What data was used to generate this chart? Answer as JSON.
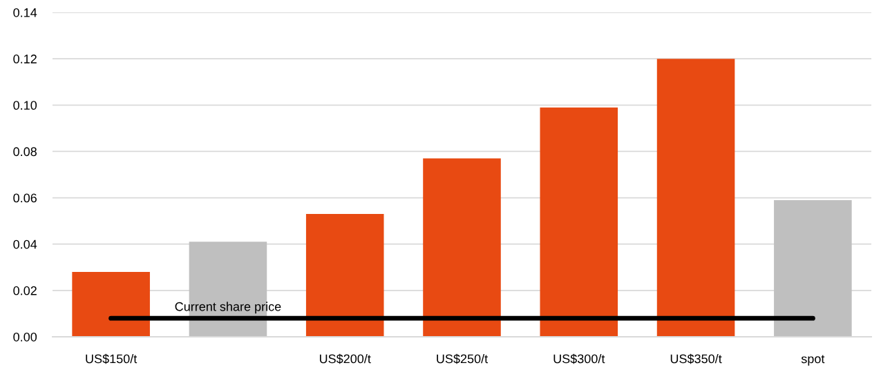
{
  "chart_data": {
    "type": "bar",
    "categories": [
      "US$150/t",
      null,
      "US$200/t",
      "US$250/t",
      "US$300/t",
      "US$350/t",
      "spot"
    ],
    "series": [
      {
        "colors": [
          "#e84a12",
          "#bfbfbf",
          "#e84a12",
          "#e84a12",
          "#e84a12",
          "#e84a12",
          "#bfbfbf"
        ],
        "values": [
          0.028,
          0.041,
          0.053,
          0.077,
          0.099,
          0.12,
          0.059
        ]
      },
      {
        "type": "line",
        "name": "Current share price",
        "color": "#000000",
        "values": [
          0.008,
          0.008,
          0.008,
          0.008,
          0.008,
          0.008,
          0.008
        ]
      }
    ],
    "ylim": [
      0,
      0.14
    ],
    "yticks": [
      {
        "value": 0,
        "label": "0.00"
      },
      {
        "value": 0.02,
        "label": "0.02"
      },
      {
        "value": 0.04,
        "label": "0.04"
      },
      {
        "value": 0.06,
        "label": "0.06"
      },
      {
        "value": 0.08,
        "label": "0.08"
      },
      {
        "value": 0.1,
        "label": "0.10"
      },
      {
        "value": 0.12,
        "label": "0.12"
      },
      {
        "value": 0.14,
        "label": "0.14"
      }
    ],
    "grid": "y"
  }
}
